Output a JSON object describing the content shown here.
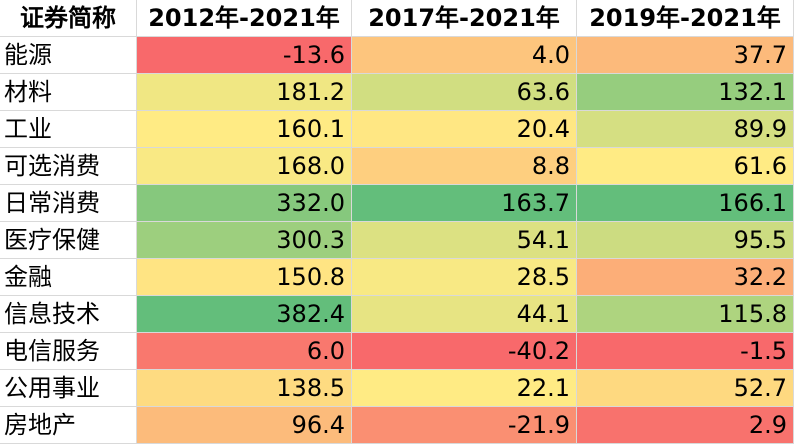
{
  "table": {
    "header": [
      "证券简称",
      "2012年-2021年",
      "2017年-2021年",
      "2019年-2021年"
    ],
    "rows": [
      [
        "能源",
        "-13.6",
        "4.0",
        "37.7"
      ],
      [
        "材料",
        "181.2",
        "63.6",
        "132.1"
      ],
      [
        "工业",
        "160.1",
        "20.4",
        "89.9"
      ],
      [
        "可选消费",
        "168.0",
        "8.8",
        "61.6"
      ],
      [
        "日常消费",
        "332.0",
        "163.7",
        "166.1"
      ],
      [
        "医疗保健",
        "300.3",
        "54.1",
        "95.5"
      ],
      [
        "金融",
        "150.8",
        "28.5",
        "32.2"
      ],
      [
        "信息技术",
        "382.4",
        "44.1",
        "115.8"
      ],
      [
        "电信服务",
        "6.0",
        "-40.2",
        "-1.5"
      ],
      [
        "公用事业",
        "138.5",
        "22.1",
        "52.7"
      ],
      [
        "房地产",
        "96.4",
        "-21.9",
        "2.9"
      ]
    ]
  }
}
